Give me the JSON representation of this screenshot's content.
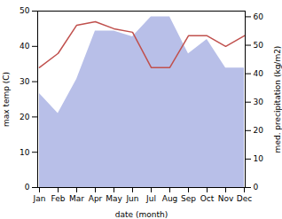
{
  "chart_data": {
    "type": "line",
    "xlabel": "date (month)",
    "ylabel": "max temp (C)",
    "y2label": "med. precipitation (kg/m2)",
    "categories": [
      "Jan",
      "Feb",
      "Mar",
      "Apr",
      "May",
      "Jun",
      "Jul",
      "Aug",
      "Sep",
      "Oct",
      "Nov",
      "Dec"
    ],
    "series": [
      {
        "type": "area",
        "axis": "y2",
        "color": "#b8bfe8",
        "values": [
          33,
          26,
          38,
          55,
          55,
          53,
          60,
          60,
          47,
          52,
          42,
          42
        ]
      },
      {
        "type": "line",
        "color": "#c0504d",
        "values": [
          34,
          38,
          46,
          47,
          45,
          44,
          34,
          34,
          43,
          43,
          40,
          43
        ]
      }
    ],
    "ylim": [
      0,
      50
    ],
    "yticks": [
      0,
      10,
      20,
      30,
      40,
      50
    ],
    "y2lim": [
      0,
      62
    ],
    "y2ticks": [
      0,
      10,
      20,
      30,
      40,
      50,
      60
    ],
    "grid": false
  }
}
